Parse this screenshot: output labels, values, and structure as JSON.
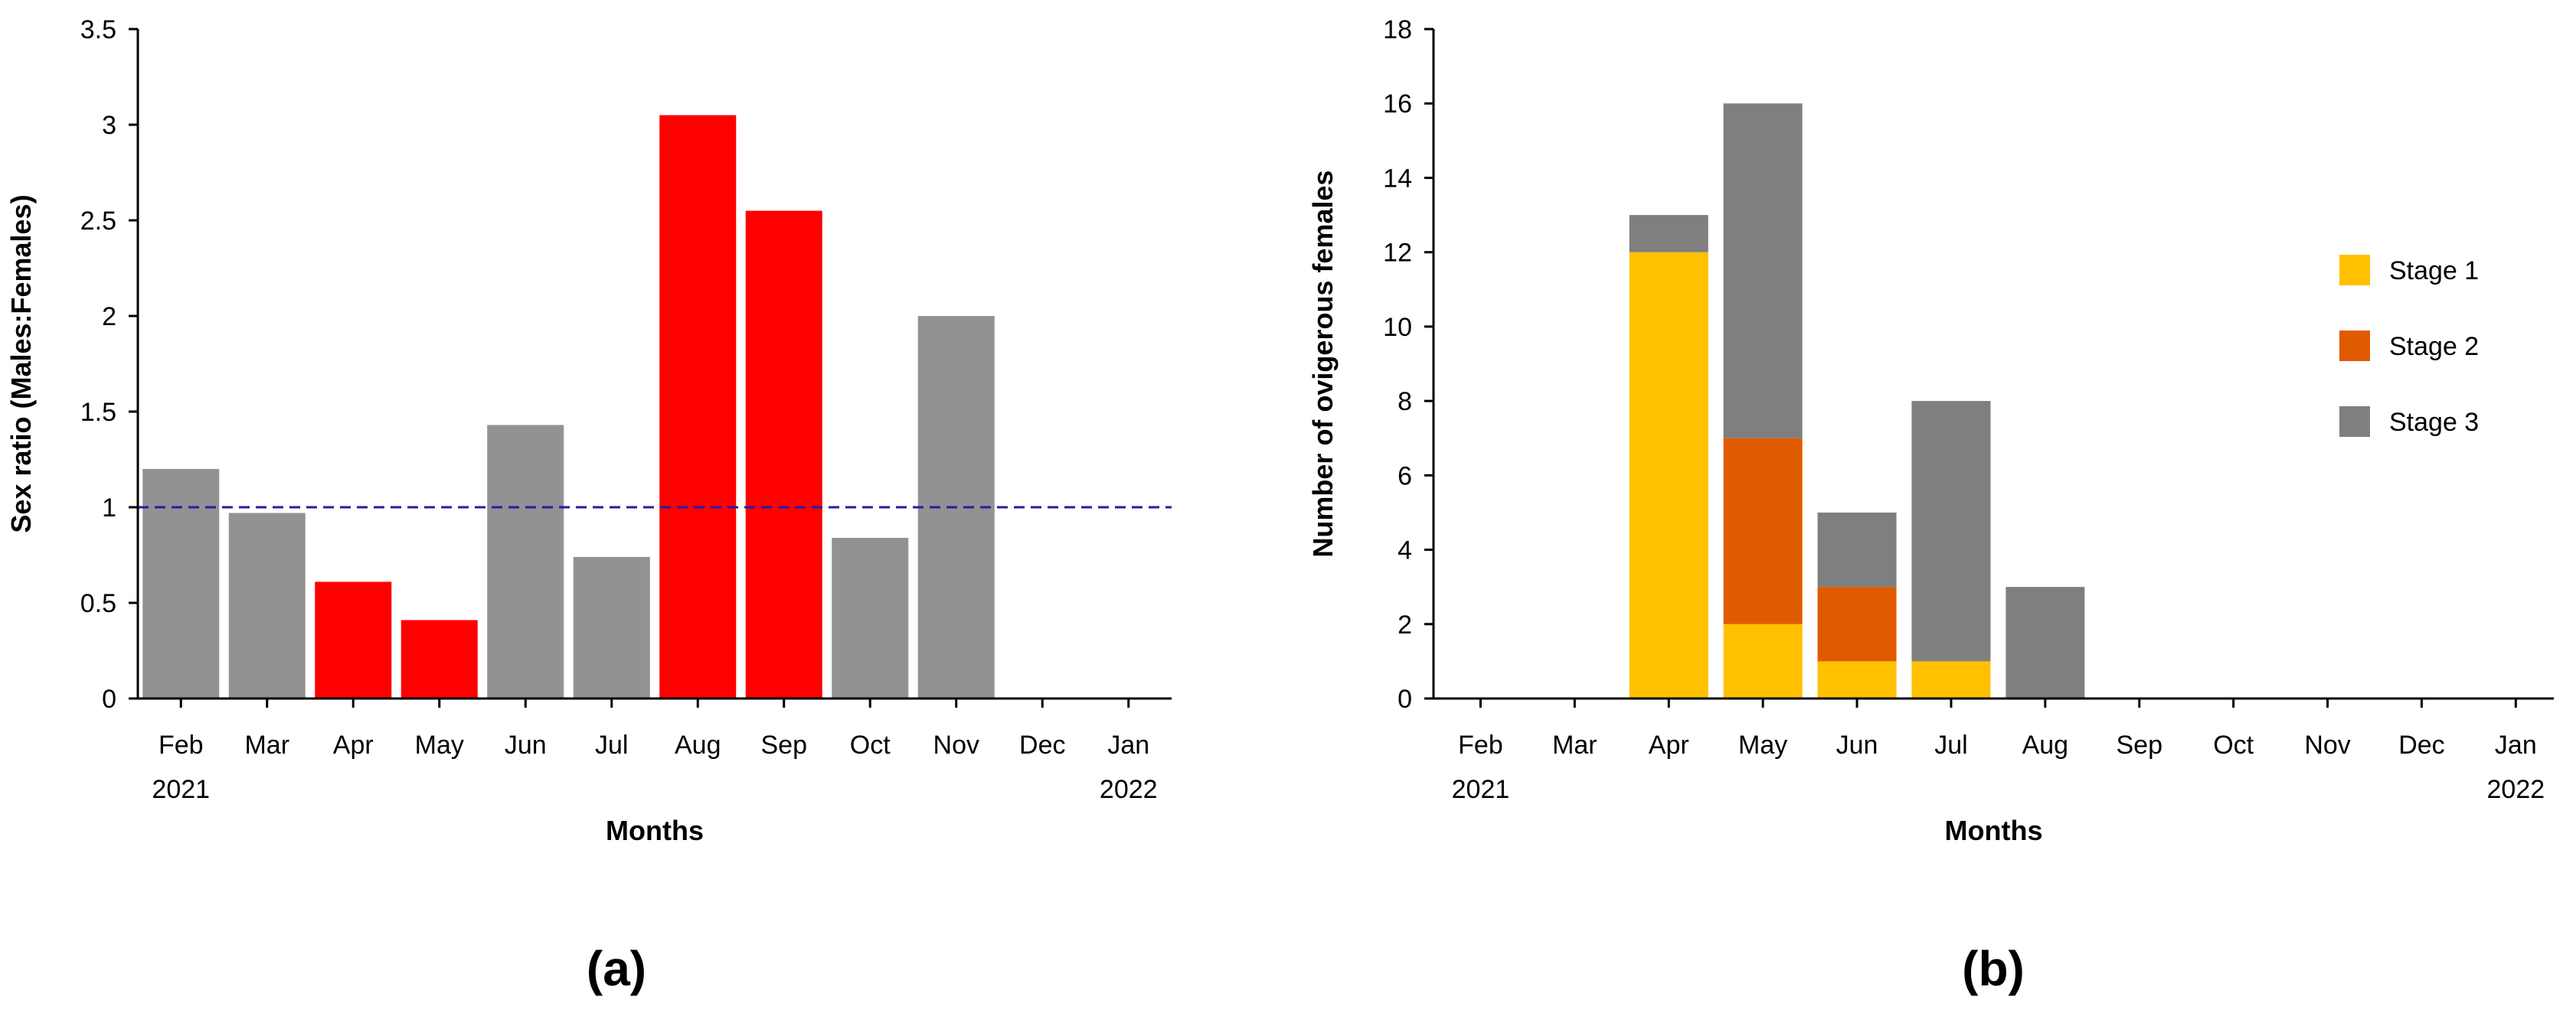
{
  "chart_data": [
    {
      "type": "bar",
      "panel_label": "(a)",
      "categories": [
        "Feb",
        "Mar",
        "Apr",
        "May",
        "Jun",
        "Jul",
        "Aug",
        "Sep",
        "Oct",
        "Nov",
        "Dec",
        "Jan"
      ],
      "year_labels": {
        "first": "2021",
        "last": "2022"
      },
      "values": [
        1.2,
        0.97,
        0.61,
        0.41,
        1.43,
        0.74,
        3.05,
        2.55,
        0.84,
        2.0,
        null,
        null
      ],
      "bar_colors": [
        "#929292",
        "#929292",
        "#ff0000",
        "#ff0000",
        "#929292",
        "#929292",
        "#ff0000",
        "#ff0000",
        "#929292",
        "#929292",
        "#929292",
        "#929292"
      ],
      "reference_line": {
        "value": 1,
        "style": "dashed",
        "color": "#1f1fa8"
      },
      "xlabel": "Months",
      "ylabel": "Sex ratio (Males:Females)",
      "ylim": [
        0,
        3.5
      ],
      "yticks": [
        "0",
        "0.5",
        "1",
        "1.5",
        "2",
        "2.5",
        "3",
        "3.5"
      ],
      "grid": false
    },
    {
      "type": "bar",
      "stacked": true,
      "panel_label": "(b)",
      "categories": [
        "Feb",
        "Mar",
        "Apr",
        "May",
        "Jun",
        "Jul",
        "Aug",
        "Sep",
        "Oct",
        "Nov",
        "Dec",
        "Jan"
      ],
      "year_labels": {
        "first": "2021",
        "last": "2022"
      },
      "series": [
        {
          "name": "Stage 1",
          "color": "#ffc000",
          "values": [
            0,
            0,
            12,
            2,
            1,
            1,
            0,
            0,
            0,
            0,
            0,
            0
          ]
        },
        {
          "name": "Stage 2",
          "color": "#e05a00",
          "values": [
            0,
            0,
            0,
            5,
            2,
            0,
            0,
            0,
            0,
            0,
            0,
            0
          ]
        },
        {
          "name": "Stage 3",
          "color": "#7f7f7f",
          "values": [
            0,
            0,
            1,
            9,
            2,
            7,
            3,
            0,
            0,
            0,
            0,
            0
          ]
        }
      ],
      "xlabel": "Months",
      "ylabel": "Number of ovigerous females",
      "ylim": [
        0,
        18
      ],
      "yticks": [
        "0",
        "2",
        "4",
        "6",
        "8",
        "10",
        "12",
        "14",
        "16",
        "18"
      ],
      "legend_position": "right",
      "grid": false
    }
  ]
}
